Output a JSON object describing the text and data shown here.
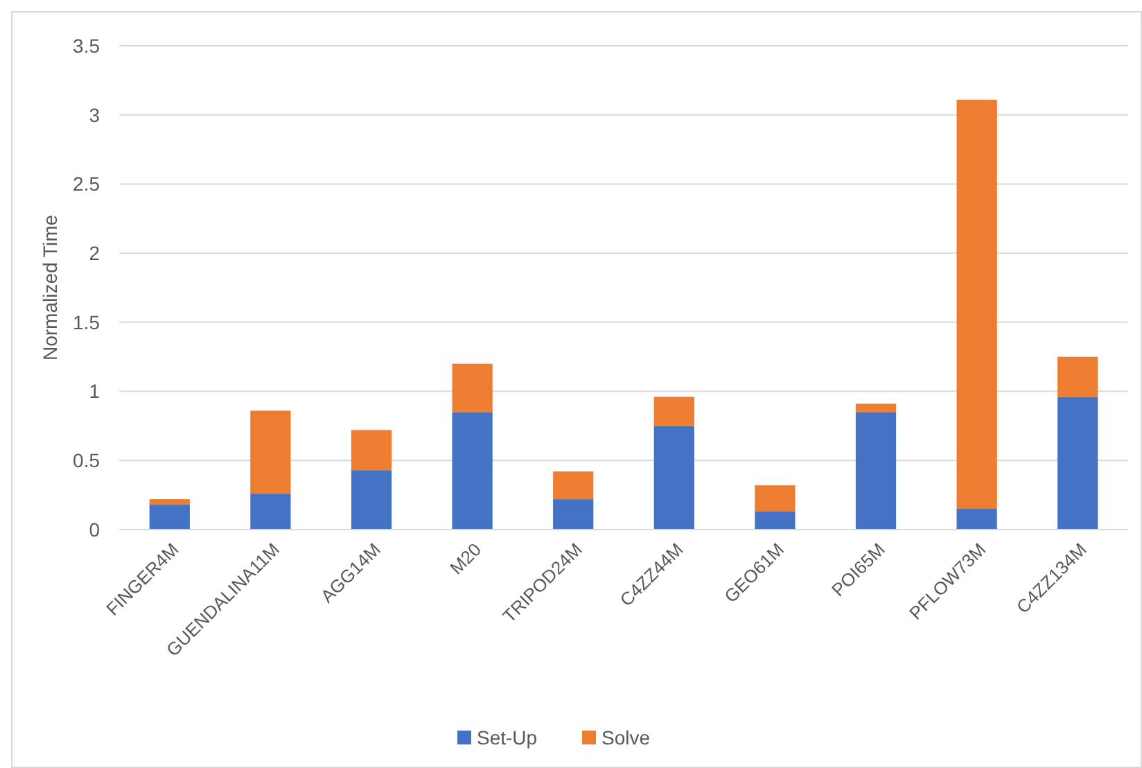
{
  "chart_data": {
    "type": "bar",
    "stacked": true,
    "ylabel": "Normalized Time",
    "categories": [
      "FINGER4M",
      "GUENDALINA11M",
      "AGG14M",
      "M20",
      "TRIPOD24M",
      "C4ZZ44M",
      "GEO61M",
      "POI65M",
      "PFLOW73M",
      "C4ZZ134M"
    ],
    "series": [
      {
        "name": "Set-Up",
        "color": "#4472c4",
        "values": [
          0.18,
          0.26,
          0.43,
          0.85,
          0.22,
          0.75,
          0.13,
          0.85,
          0.15,
          0.96
        ]
      },
      {
        "name": "Solve",
        "color": "#ed7d31",
        "values": [
          0.04,
          0.6,
          0.29,
          0.35,
          0.2,
          0.21,
          0.19,
          0.06,
          2.96,
          0.29
        ]
      }
    ],
    "ylim": [
      0,
      3.5
    ],
    "yticks": [
      0,
      0.5,
      1,
      1.5,
      2,
      2.5,
      3,
      3.5
    ],
    "grid": "y",
    "legend": "bottom"
  }
}
